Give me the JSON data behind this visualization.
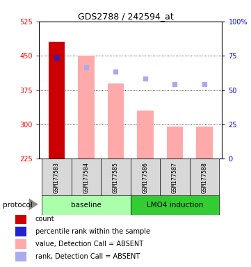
{
  "title": "GDS2788 / 242594_at",
  "samples": [
    "GSM177583",
    "GSM177584",
    "GSM177585",
    "GSM177586",
    "GSM177587",
    "GSM177588"
  ],
  "ylim_left": [
    225,
    525
  ],
  "ylim_right": [
    0,
    100
  ],
  "yticks_left": [
    225,
    300,
    375,
    450,
    525
  ],
  "yticks_right": [
    0,
    25,
    50,
    75,
    100
  ],
  "yticklabels_right": [
    "0",
    "25",
    "50",
    "75",
    "100%"
  ],
  "bar_values": [
    480,
    450,
    390,
    330,
    295,
    295
  ],
  "bar_colors": [
    "#cc0000",
    "#ffaaaa",
    "#ffaaaa",
    "#ffaaaa",
    "#ffaaaa",
    "#ffaaaa"
  ],
  "rank_values": [
    445,
    425,
    415,
    400,
    388,
    388
  ],
  "rank_colors": [
    "#2222cc",
    "#aaaaee",
    "#aaaaee",
    "#aaaaee",
    "#aaaaee",
    "#aaaaee"
  ],
  "grid_lines": [
    300,
    375,
    450
  ],
  "baseline_color": "#aaffaa",
  "lmo4_color": "#33cc33",
  "legend_items": [
    {
      "color": "#cc0000",
      "label": "count"
    },
    {
      "color": "#2222cc",
      "label": "percentile rank within the sample"
    },
    {
      "color": "#ffaaaa",
      "label": "value, Detection Call = ABSENT"
    },
    {
      "color": "#aaaaee",
      "label": "rank, Detection Call = ABSENT"
    }
  ],
  "bar_width": 0.55,
  "base_value": 225
}
